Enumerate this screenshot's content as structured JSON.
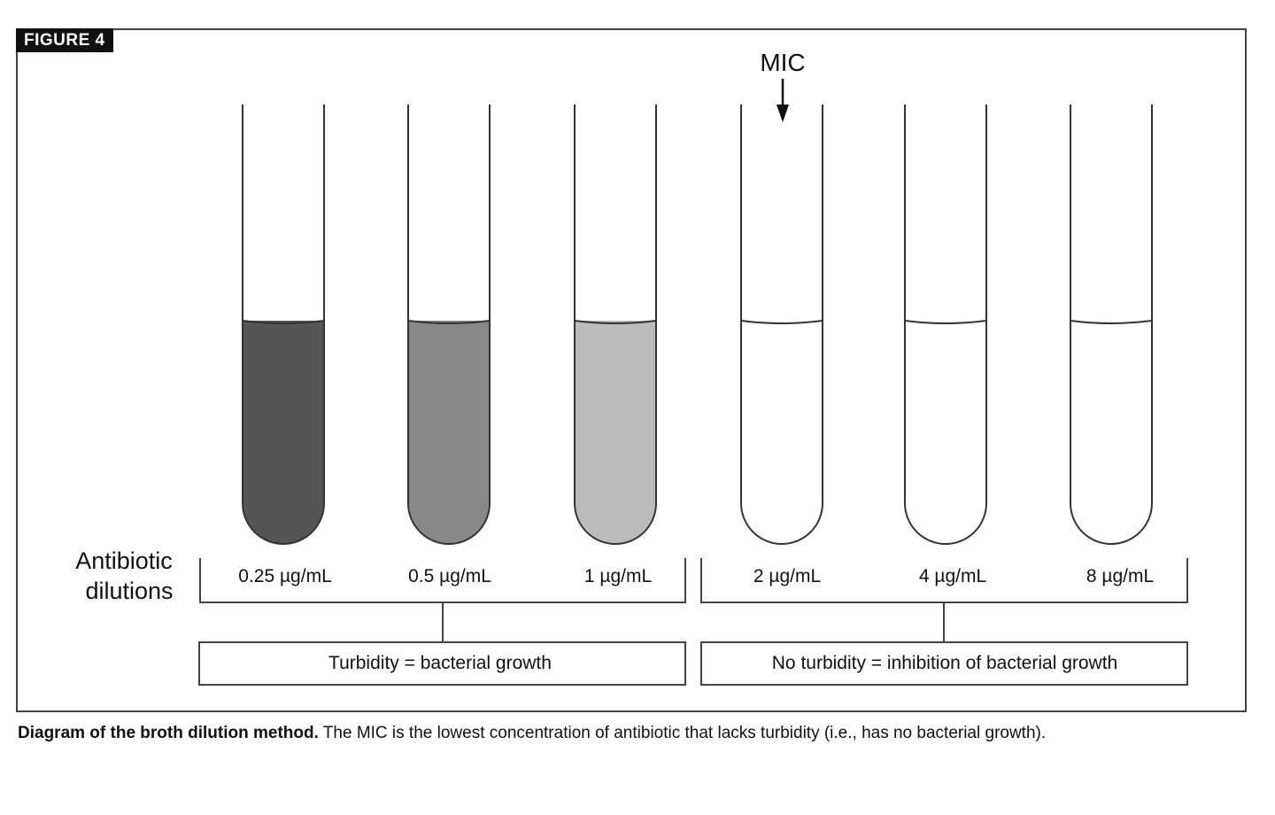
{
  "figure": {
    "label": "FIGURE 4",
    "mic_label": "MIC",
    "axis_label_line1": "Antibiotic",
    "axis_label_line2": "dilutions",
    "tubes": [
      {
        "concentration": "0.25 µg/mL",
        "fill": "#555555",
        "turbid": true
      },
      {
        "concentration": "0.5 µg/mL",
        "fill": "#888888",
        "turbid": true
      },
      {
        "concentration": "1 µg/mL",
        "fill": "#bbbbbb",
        "turbid": true
      },
      {
        "concentration": "2 µg/mL",
        "fill": "#ffffff",
        "turbid": false
      },
      {
        "concentration": "4 µg/mL",
        "fill": "#ffffff",
        "turbid": false
      },
      {
        "concentration": "8 µg/mL",
        "fill": "#ffffff",
        "turbid": false
      }
    ],
    "groups": [
      {
        "result": "Turbidity = bacterial growth"
      },
      {
        "result": "No turbidity = inhibition of bacterial growth"
      }
    ]
  },
  "caption": {
    "lead": "Diagram of the broth dilution method.",
    "text": " The MIC is the lowest concentration of antibiotic that lacks turbidity (i.e., has no bacterial growth)."
  }
}
